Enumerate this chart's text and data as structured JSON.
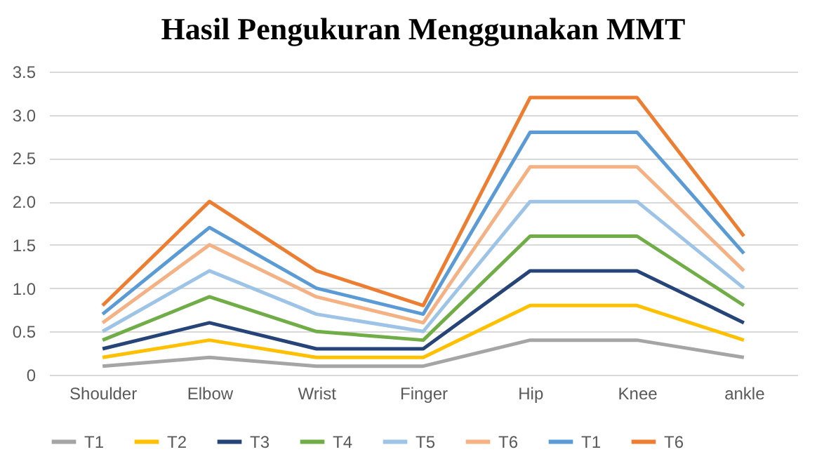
{
  "chart_data": {
    "type": "line",
    "title": "Hasil Pengukuran Menggunakan MMT",
    "categories": [
      "Shoulder",
      "Elbow",
      "Wrist",
      "Finger",
      "Hip",
      "Knee",
      "ankle"
    ],
    "series": [
      {
        "name": "T1",
        "color": "#a5a5a5",
        "values": [
          0.1,
          0.2,
          0.1,
          0.1,
          0.4,
          0.4,
          0.2
        ]
      },
      {
        "name": "T2",
        "color": "#ffc000",
        "values": [
          0.2,
          0.4,
          0.2,
          0.2,
          0.8,
          0.8,
          0.4
        ]
      },
      {
        "name": "T3",
        "color": "#264478",
        "values": [
          0.3,
          0.6,
          0.3,
          0.3,
          1.2,
          1.2,
          0.6
        ]
      },
      {
        "name": "T4",
        "color": "#70ad47",
        "values": [
          0.4,
          0.9,
          0.5,
          0.4,
          1.6,
          1.6,
          0.8
        ]
      },
      {
        "name": "T5",
        "color": "#9dc3e6",
        "values": [
          0.5,
          1.2,
          0.7,
          0.5,
          2.0,
          2.0,
          1.0
        ]
      },
      {
        "name": "T6",
        "color": "#f4b183",
        "values": [
          0.6,
          1.5,
          0.9,
          0.6,
          2.4,
          2.4,
          1.2
        ]
      },
      {
        "name": "T1",
        "color": "#5b9bd5",
        "values": [
          0.7,
          1.7,
          1.0,
          0.7,
          2.8,
          2.8,
          1.4
        ]
      },
      {
        "name": "T6",
        "color": "#ed7d31",
        "values": [
          0.8,
          2.0,
          1.2,
          0.8,
          3.2,
          3.2,
          1.6
        ]
      }
    ],
    "ylim": [
      0,
      3.5
    ],
    "yticks": [
      0,
      {
        "value": 0.5,
        "label": "0.5"
      },
      {
        "value": 1,
        "label": "1.0"
      },
      {
        "value": 1.5,
        "label": "1.5"
      },
      {
        "value": 2,
        "label": "2.0"
      },
      {
        "value": 2.5,
        "label": "2.5"
      },
      {
        "value": 3,
        "label": "3.0"
      },
      {
        "value": 3.5,
        "label": "3.5"
      }
    ],
    "grid": "y",
    "legend": "bottom",
    "marker": "none",
    "line_style": "solid"
  }
}
